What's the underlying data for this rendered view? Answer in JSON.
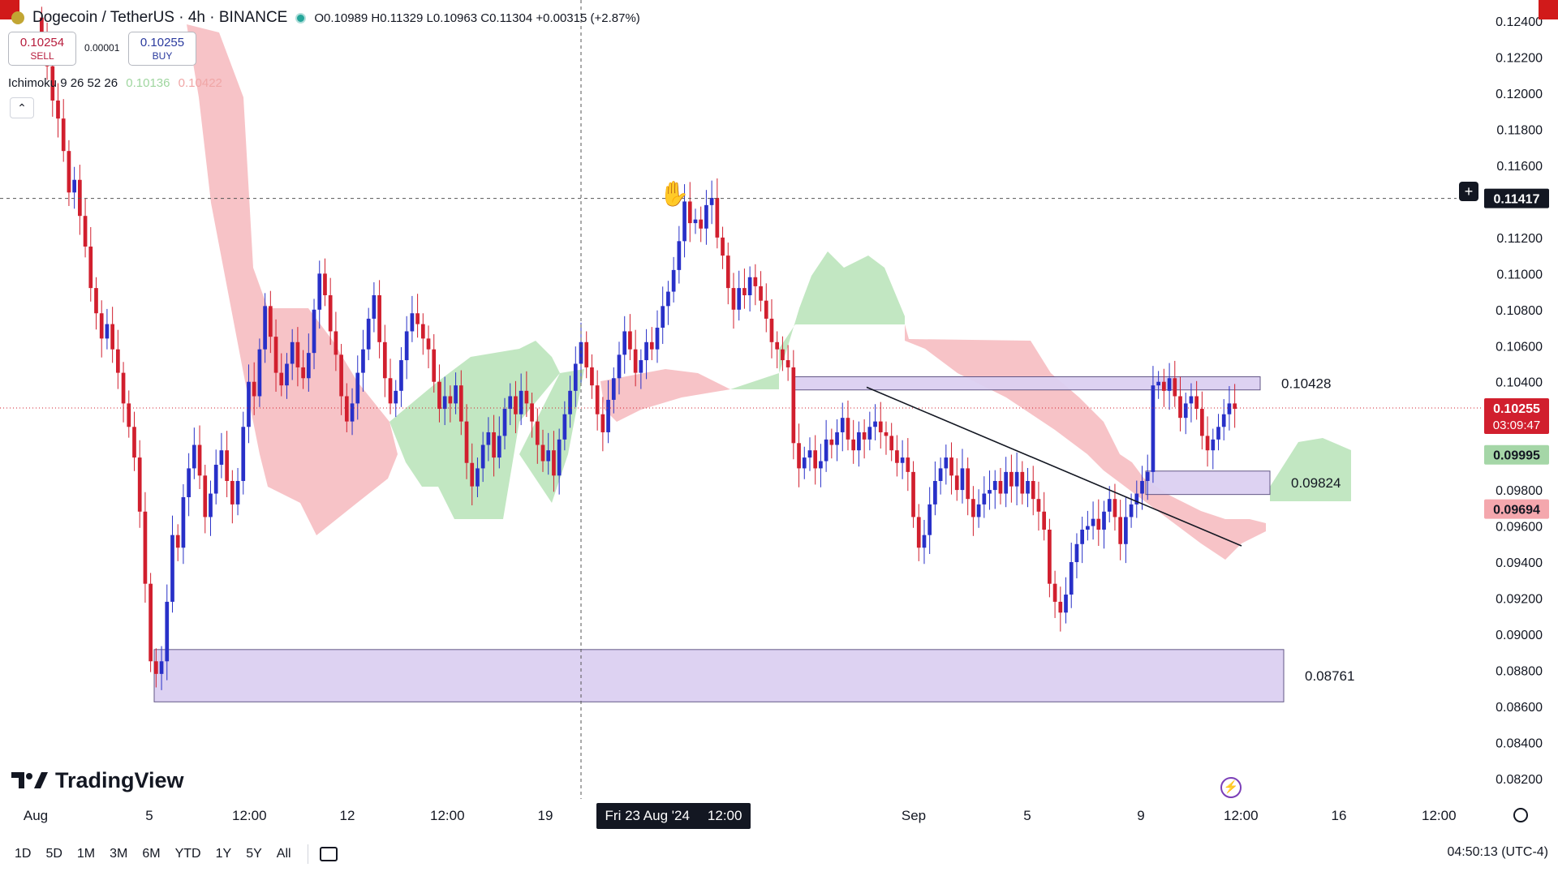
{
  "header": {
    "title": "Dogecoin / TetherUS · 4h · BINANCE",
    "ohlc": "O0.10989 H0.11329 L0.10963 C0.11304 +0.00315 (+2.87%)"
  },
  "trade": {
    "sell_price": "0.10254",
    "sell_label": "SELL",
    "spread": "0.00001",
    "buy_price": "0.10255",
    "buy_label": "BUY"
  },
  "indicator": {
    "name": "Ichimoku 9 26 52 26",
    "v1": "0.10136",
    "v2": "0.10422"
  },
  "brand": "TradingView",
  "time_axis": {
    "labels": [
      "Aug",
      "5",
      "12:00",
      "12",
      "12:00",
      "19",
      "Sep",
      "5",
      "9",
      "12:00",
      "16",
      "12:00"
    ],
    "crosshair_date": "Fri 23 Aug '24",
    "crosshair_time": "12:00"
  },
  "bottom_bar": {
    "ranges": [
      "1D",
      "5D",
      "1M",
      "3M",
      "6M",
      "YTD",
      "1Y",
      "5Y",
      "All"
    ],
    "clock": "04:50:13 (UTC-4)"
  },
  "colors": {
    "up": "#2830c8",
    "down": "#d11f2e",
    "cloud_bull": "#b7e3b7",
    "cloud_bear": "#f6b8bd",
    "zone": "#dcd0f2",
    "zone_border": "#5a4f80"
  },
  "chart_data": {
    "type": "candlestick",
    "symbol": "DOGE/USDT",
    "timeframe": "4h",
    "ylim": [
      0.081,
      0.1245
    ],
    "y_ticks": [
      "0.12400",
      "0.12200",
      "0.12000",
      "0.11800",
      "0.11600",
      "0.11200",
      "0.11000",
      "0.10800",
      "0.10600",
      "0.10400",
      "0.09800",
      "0.09600",
      "0.09400",
      "0.09200",
      "0.09000",
      "0.08800",
      "0.08600",
      "0.08400",
      "0.08200"
    ],
    "price_labels": [
      {
        "label": "0.11417",
        "value": 0.11417,
        "bg": "#131722",
        "fg": "#ffffff"
      },
      {
        "label": "0.10255",
        "value": 0.10255,
        "bg": "#d11f2e",
        "fg": "#ffffff",
        "sub": "03:09:47"
      },
      {
        "label": "0.09995",
        "value": 0.09995,
        "bg": "#a5d6a7",
        "fg": "#131722"
      },
      {
        "label": "0.09694",
        "value": 0.09694,
        "bg": "#f4a7ad",
        "fg": "#131722"
      }
    ],
    "zones": [
      {
        "label": "0.10428",
        "top": 0.10428,
        "bottom": 0.10355
      },
      {
        "label": "0.09824",
        "top": 0.09905,
        "bottom": 0.09775
      },
      {
        "label": "0.08761",
        "top": 0.08915,
        "bottom": 0.08625
      }
    ],
    "trendline": {
      "from": 0.1037,
      "to": 0.0949
    },
    "close": [
      0.1232,
      0.1215,
      0.1196,
      0.1186,
      0.1168,
      0.1145,
      0.1152,
      0.1132,
      0.1115,
      0.1092,
      0.1078,
      0.1064,
      0.1072,
      0.1058,
      0.1045,
      0.1028,
      0.1015,
      0.0998,
      0.0968,
      0.0928,
      0.0885,
      0.0878,
      0.0885,
      0.0918,
      0.0955,
      0.0948,
      0.0976,
      0.0992,
      0.1005,
      0.0988,
      0.0965,
      0.0978,
      0.0994,
      0.1002,
      0.0985,
      0.0972,
      0.0985,
      0.1015,
      0.104,
      0.1032,
      0.1058,
      0.1082,
      0.1065,
      0.1045,
      0.1038,
      0.105,
      0.1062,
      0.1048,
      0.1042,
      0.1056,
      0.108,
      0.11,
      0.1088,
      0.1068,
      0.1055,
      0.1032,
      0.1018,
      0.1028,
      0.1045,
      0.1058,
      0.1075,
      0.1088,
      0.1062,
      0.1042,
      0.1028,
      0.1035,
      0.1052,
      0.1068,
      0.1078,
      0.1072,
      0.1064,
      0.1058,
      0.104,
      0.1025,
      0.1032,
      0.1028,
      0.1038,
      0.1018,
      0.0995,
      0.0982,
      0.0992,
      0.1005,
      0.1012,
      0.0998,
      0.101,
      0.1025,
      0.1032,
      0.1022,
      0.1035,
      0.1028,
      0.1018,
      0.1005,
      0.0996,
      0.1002,
      0.0988,
      0.1008,
      0.1022,
      0.1035,
      0.105,
      0.1062,
      0.1048,
      0.1038,
      0.1022,
      0.1012,
      0.103,
      0.1042,
      0.1055,
      0.1068,
      0.1058,
      0.1045,
      0.1052,
      0.1062,
      0.1058,
      0.107,
      0.1082,
      0.109,
      0.1102,
      0.1118,
      0.114,
      0.1128,
      0.113,
      0.1125,
      0.1138,
      0.1142,
      0.112,
      0.111,
      0.1092,
      0.108,
      0.1092,
      0.1088,
      0.1098,
      0.1093,
      0.1085,
      0.1075,
      0.1062,
      0.1058,
      0.1052,
      0.1048,
      0.1006,
      0.0992,
      0.0998,
      0.1002,
      0.0992,
      0.0996,
      0.1008,
      0.1005,
      0.1012,
      0.102,
      0.1008,
      0.1002,
      0.1012,
      0.1008,
      0.1015,
      0.1018,
      0.1012,
      0.101,
      0.1002,
      0.0995,
      0.0998,
      0.099,
      0.0965,
      0.0948,
      0.0955,
      0.0972,
      0.0985,
      0.0992,
      0.0998,
      0.0988,
      0.098,
      0.0992,
      0.0975,
      0.0965,
      0.0972,
      0.0978,
      0.098,
      0.0985,
      0.0978,
      0.099,
      0.0982,
      0.099,
      0.0978,
      0.0985,
      0.0975,
      0.0968,
      0.0958,
      0.0928,
      0.0918,
      0.0912,
      0.0922,
      0.094,
      0.095,
      0.0958,
      0.096,
      0.0964,
      0.0958,
      0.0968,
      0.0975,
      0.0965,
      0.095,
      0.0965,
      0.0972,
      0.0978,
      0.0985,
      0.099,
      0.1038,
      0.104,
      0.1035,
      0.1042,
      0.1032,
      0.102,
      0.1028,
      0.1032,
      0.1025,
      0.101,
      0.1002,
      0.1008,
      0.1015,
      0.1022,
      0.1028,
      0.1025
    ]
  }
}
